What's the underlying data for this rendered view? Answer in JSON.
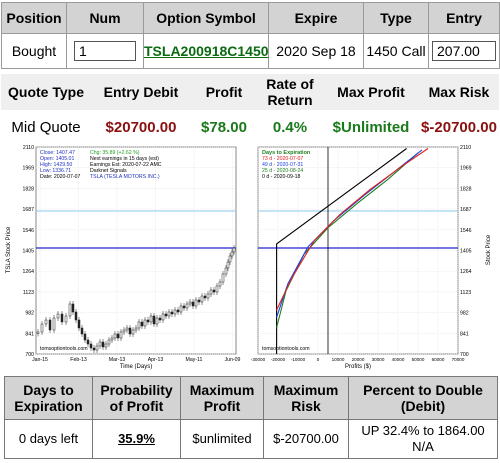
{
  "position_table": {
    "headers": [
      "Position",
      "Num",
      "Option Symbol",
      "Expire",
      "Type",
      "Entry"
    ],
    "row": {
      "position": "Bought",
      "num": "1",
      "symbol": "TSLA200918C1450",
      "expire": "2020 Sep 18",
      "type": "1450 Call",
      "entry": "207.00"
    }
  },
  "quote_table": {
    "headers": [
      "Quote Type",
      "Entry Debit",
      "Profit",
      "Rate of Return",
      "Max Profit",
      "Max Risk"
    ],
    "row": {
      "quote_type": "Mid Quote",
      "entry_debit": "$20700.00",
      "profit": "$78.00",
      "rate_of_return": "0.4%",
      "max_profit": "$Unlimited",
      "max_risk": "$-20700.00"
    }
  },
  "stock_chart": {
    "info": {
      "close": "Close: 1407.47",
      "open": "Open: 1405.01",
      "high": "High:  1429.50",
      "low": "Low:   1336.71",
      "date": "Date:   2020-07-07",
      "chg": "Chg: 35.89  (+2.62 %)",
      "next_earnings": "Next earnings in 15 days  (est)",
      "earnings_est": "Earnings Est: 2020-07-22 AMC",
      "signals": "Darknet Signals",
      "name": "TSLA (TESLA MOTORS INC.)"
    },
    "watermark": "tomsoptiontools.com",
    "xlabel": "Time (Days)",
    "ylabel": "TSLA Stock Price",
    "xticks": [
      "Jan-15",
      "Feb-13",
      "Mar-13",
      "Apr-13",
      "May-11",
      "Jun-09"
    ]
  },
  "profit_chart": {
    "legend_title": "Days to Expiration",
    "legend": [
      {
        "label": "73 d - 2020-07-07",
        "color": "#e02020"
      },
      {
        "label": "49 d - 2020-07-31",
        "color": "#2040e0"
      },
      {
        "label": "25 d - 2020-08-24",
        "color": "#208020"
      },
      {
        "label": "0 d - 2020-09-18",
        "color": "#000000"
      }
    ],
    "watermark": "tomsoptiontools.com",
    "xlabel": "Profits ($)",
    "ylabel": "Stock Price",
    "xticks": [
      "-30000",
      "-20000",
      "-10000",
      "0",
      "10000",
      "20000",
      "30000",
      "40000",
      "50000",
      "60000",
      "70000"
    ]
  },
  "price_axis": {
    "ticks": [
      "2110",
      "1969",
      "1828",
      "1687",
      "1546",
      "1405",
      "1264",
      "1123",
      "982",
      "841",
      "700"
    ]
  },
  "chart_data": {
    "type": "line",
    "title": "",
    "xlabel": "Profits ($)",
    "ylabel": "Stock Price",
    "xlim": [
      -30000,
      70000
    ],
    "ylim": [
      700,
      2110
    ],
    "current_price": 1405,
    "reference_price": 1658,
    "series": [
      {
        "name": "0 d - 2020-09-18",
        "x": [
          -20700,
          -20700,
          44300
        ],
        "y": [
          700,
          1450,
          2100
        ]
      },
      {
        "name": "25 d - 2020-08-24",
        "x": [
          -20700,
          -16000,
          -7000,
          5000,
          20000,
          35000,
          50000
        ],
        "y": [
          880,
          1130,
          1380,
          1560,
          1730,
          1890,
          2070
        ]
      },
      {
        "name": "49 d - 2020-07-31",
        "x": [
          -20700,
          -15000,
          -5000,
          8000,
          23000,
          38000,
          52000
        ],
        "y": [
          950,
          1180,
          1430,
          1610,
          1780,
          1940,
          2090
        ]
      },
      {
        "name": "73 d - 2020-07-07",
        "x": [
          -20700,
          -13000,
          -2000,
          11000,
          26000,
          41000,
          55000
        ],
        "y": [
          1000,
          1220,
          1470,
          1650,
          1820,
          1970,
          2100
        ]
      }
    ]
  },
  "summary": {
    "headers": {
      "days": "Days to Expiration",
      "prob": "Probability of Profit",
      "maxprofit": "Maximum Profit",
      "maxrisk": "Maximum Risk",
      "pct": "Percent to Double (Debit)"
    },
    "values": {
      "days": "0 days left",
      "prob": "35.9%",
      "maxprofit": "$unlimited",
      "maxrisk": "$-20700.00",
      "pct_line1": "UP 32.4% to 1864.00",
      "pct_line2": "N/A"
    }
  }
}
